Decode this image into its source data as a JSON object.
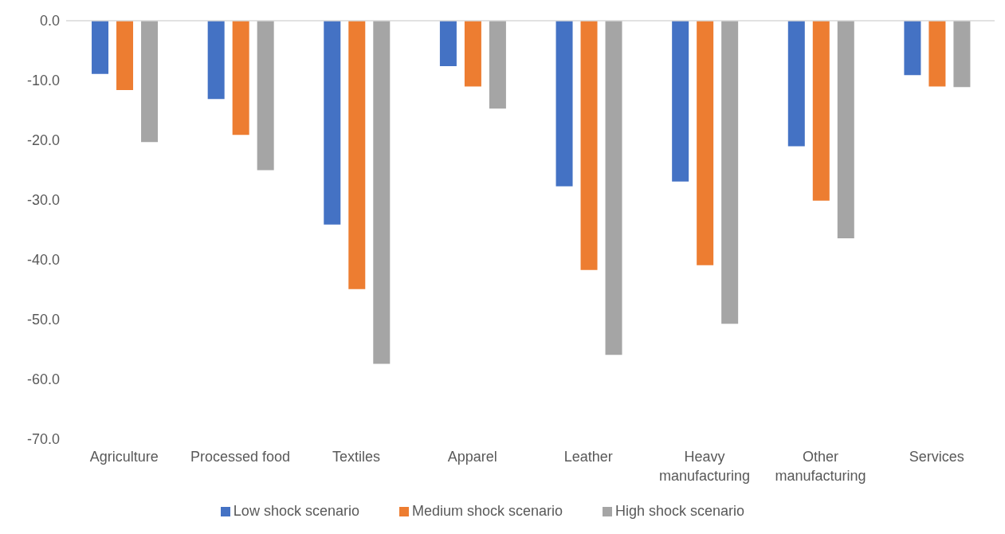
{
  "chart_data": {
    "type": "bar",
    "categories": [
      "Agriculture",
      "Processed food",
      "Textiles",
      "Apparel",
      "Leather",
      "Heavy manufacturing",
      "Other manufacturing",
      "Services"
    ],
    "series": [
      {
        "name": "Low shock scenario",
        "color": "#4472c4",
        "values": [
          -8.9,
          -13.1,
          -34.1,
          -7.6,
          -27.7,
          -26.9,
          -21.0,
          -9.1
        ]
      },
      {
        "name": "Medium shock scenario",
        "color": "#ed7d31",
        "values": [
          -11.6,
          -19.1,
          -44.9,
          -11.0,
          -41.7,
          -40.9,
          -30.1,
          -11.0
        ]
      },
      {
        "name": "High shock scenario",
        "color": "#a5a5a5",
        "values": [
          -20.3,
          -25.0,
          -57.4,
          -14.7,
          -55.9,
          -50.7,
          -36.4,
          -11.1
        ]
      }
    ],
    "ylim": [
      -70,
      0
    ],
    "yticks": [
      {
        "value": 0,
        "label": "0.0"
      },
      {
        "value": -10,
        "label": "-10.0"
      },
      {
        "value": -20,
        "label": "-20.0"
      },
      {
        "value": -30,
        "label": "-30.0"
      },
      {
        "value": -40,
        "label": "-40.0"
      },
      {
        "value": -50,
        "label": "-50.0"
      },
      {
        "value": -60,
        "label": "-60.0"
      },
      {
        "value": -70,
        "label": "-70.0"
      }
    ],
    "grid": false,
    "legend": "bottom"
  }
}
